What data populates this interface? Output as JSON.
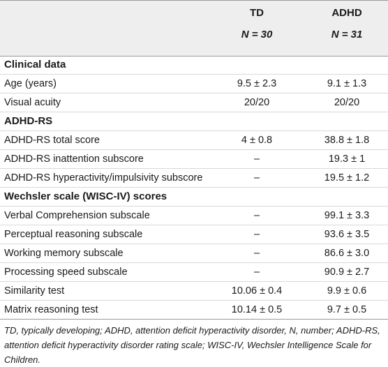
{
  "header": {
    "td_label": "TD",
    "td_n": "N = 30",
    "adhd_label": "ADHD",
    "adhd_n": "N = 31"
  },
  "rows": [
    {
      "type": "section",
      "label": "Clinical data",
      "td": "",
      "adhd": ""
    },
    {
      "type": "data",
      "label": "Age (years)",
      "td": "9.5 ± 2.3",
      "adhd": "9.1 ± 1.3"
    },
    {
      "type": "data",
      "label": "Visual acuity",
      "td": "20/20",
      "adhd": "20/20"
    },
    {
      "type": "section",
      "label": "ADHD-RS",
      "td": "",
      "adhd": ""
    },
    {
      "type": "data",
      "label": "ADHD-RS total score",
      "td": "4 ± 0.8",
      "adhd": "38.8 ± 1.8"
    },
    {
      "type": "data",
      "label": "ADHD-RS inattention subscore",
      "td": "–",
      "adhd": "19.3 ± 1"
    },
    {
      "type": "data",
      "label": "ADHD-RS hyperactivity/impulsivity subscore",
      "td": "–",
      "adhd": "19.5 ± 1.2"
    },
    {
      "type": "section",
      "label": "Wechsler scale (WISC-IV) scores",
      "td": "",
      "adhd": ""
    },
    {
      "type": "data",
      "label": "Verbal Comprehension subscale",
      "td": "–",
      "adhd": "99.1 ± 3.3"
    },
    {
      "type": "data",
      "label": "Perceptual reasoning subscale",
      "td": "–",
      "adhd": "93.6 ± 3.5"
    },
    {
      "type": "data",
      "label": "Working memory subscale",
      "td": "–",
      "adhd": "86.6 ± 3.0"
    },
    {
      "type": "data",
      "label": "Processing speed subscale",
      "td": "–",
      "adhd": "90.9 ± 2.7"
    },
    {
      "type": "data",
      "label": "Similarity test",
      "td": "10.06 ± 0.4",
      "adhd": "9.9 ± 0.6"
    },
    {
      "type": "data",
      "label": "Matrix reasoning test",
      "td": "10.14 ± 0.5",
      "adhd": "9.7 ± 0.5"
    }
  ],
  "footnote": "TD, typically developing; ADHD, attention deficit hyperactivity disorder, N, number; ADHD-RS, attention deficit hyperactivity disorder rating scale; WISC-IV, Wechsler Intelligence Scale for Children."
}
